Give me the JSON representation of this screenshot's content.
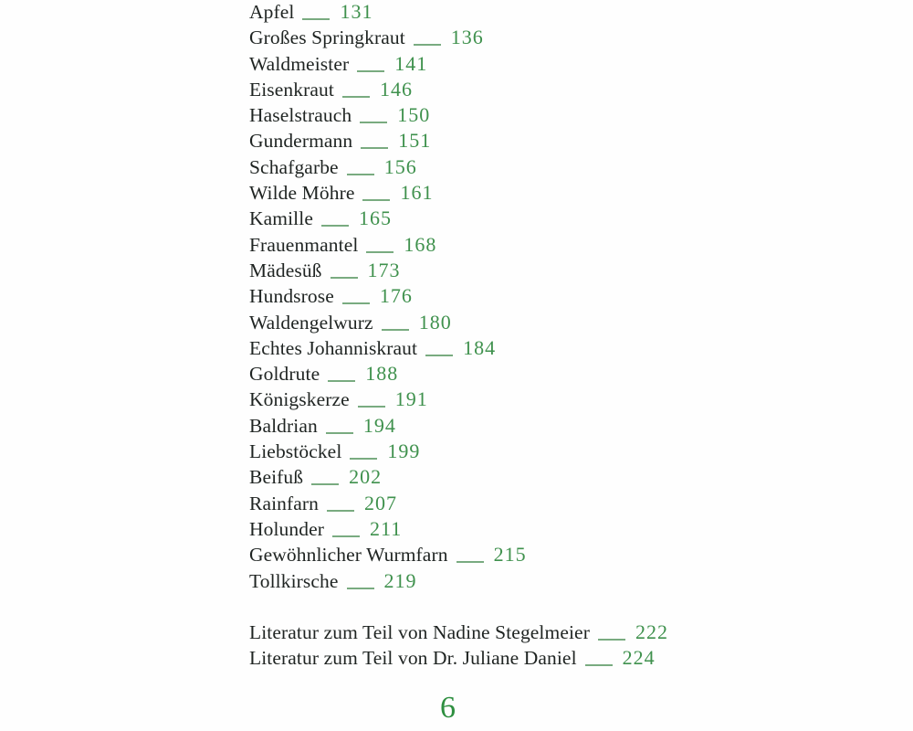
{
  "toc": {
    "entries": [
      {
        "label": "Apfel",
        "page": "131"
      },
      {
        "label": "Großes Springkraut",
        "page": "136"
      },
      {
        "label": "Waldmeister",
        "page": "141"
      },
      {
        "label": "Eisenkraut",
        "page": "146"
      },
      {
        "label": "Haselstrauch",
        "page": "150"
      },
      {
        "label": "Gundermann",
        "page": "151"
      },
      {
        "label": "Schafgarbe",
        "page": "156"
      },
      {
        "label": "Wilde Möhre",
        "page": "161"
      },
      {
        "label": "Kamille",
        "page": "165"
      },
      {
        "label": "Frauenmantel",
        "page": "168"
      },
      {
        "label": "Mädesüß",
        "page": "173"
      },
      {
        "label": "Hundsrose",
        "page": "176"
      },
      {
        "label": "Waldengelwurz",
        "page": "180"
      },
      {
        "label": "Echtes Johanniskraut",
        "page": "184"
      },
      {
        "label": "Goldrute",
        "page": "188"
      },
      {
        "label": "Königskerze",
        "page": "191"
      },
      {
        "label": "Baldrian",
        "page": "194"
      },
      {
        "label": "Liebstöckel",
        "page": "199"
      },
      {
        "label": "Beifuß",
        "page": "202"
      },
      {
        "label": "Rainfarn",
        "page": "207"
      },
      {
        "label": "Holunder",
        "page": "211"
      },
      {
        "label": "Gewöhnlicher Wurmfarn",
        "page": "215"
      },
      {
        "label": "Tollkirsche",
        "page": "219"
      }
    ],
    "literature": [
      {
        "label": "Literatur zum Teil von Nadine Stegelmeier",
        "page": "222"
      },
      {
        "label": "Literatur zum Teil von Dr. Juliane Daniel",
        "page": "224"
      }
    ],
    "folio": "6",
    "colors": {
      "entry_text": "#1f2422",
      "page_number_green": "#3f914d",
      "leader_dash_green": "#79ab80",
      "folio_green": "#2e8f40",
      "background": "#fefefe"
    }
  }
}
